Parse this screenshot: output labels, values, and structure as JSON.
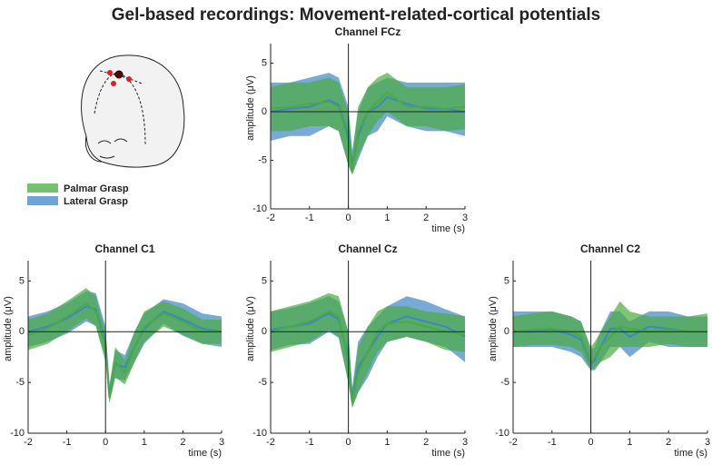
{
  "title": "Gel-based recordings: Movement-related-cortical potentials",
  "chart_data": [
    {
      "type": "band",
      "title": "Channel FCz",
      "xlabel": "time (s)",
      "ylabel": "amplitude (μV)",
      "xlim": [
        -2,
        3
      ],
      "ylim": [
        -10,
        7
      ],
      "xticks": [
        -2,
        -1,
        0,
        1,
        2,
        3
      ],
      "yticks": [
        -10,
        -5,
        0,
        5
      ],
      "x": [
        -2,
        -1.5,
        -1,
        -0.5,
        -0.25,
        0,
        0.1,
        0.25,
        0.5,
        0.75,
        1,
        1.5,
        2,
        2.5,
        3
      ],
      "series": [
        {
          "name": "Palmar Grasp",
          "color": "#4aab3f",
          "values": [
            0.3,
            0.5,
            0.8,
            1,
            0.5,
            -3,
            -6,
            -2,
            0,
            1,
            2,
            0.5,
            0.5,
            0.3,
            0.5
          ],
          "upper": [
            2.5,
            3,
            3,
            3.5,
            3,
            0,
            -4.5,
            0.5,
            2.5,
            3.5,
            4,
            2.5,
            2.5,
            2.5,
            2.8
          ],
          "lower": [
            -2,
            -2,
            -1.5,
            -1.5,
            -2,
            -5.5,
            -6.5,
            -4.5,
            -2.5,
            -1,
            0,
            -1.5,
            -1.5,
            -2,
            -1.8
          ]
        },
        {
          "name": "Lateral Grasp",
          "color": "#3f86c8",
          "values": [
            0,
            0.3,
            0.5,
            1.2,
            0.7,
            -2.5,
            -5.5,
            -2.5,
            0,
            0.5,
            1.5,
            0.8,
            0.3,
            0.3,
            0
          ],
          "upper": [
            3,
            3,
            3.5,
            4,
            3.5,
            0.5,
            -4,
            0,
            2.5,
            3,
            3.5,
            3,
            3,
            3,
            3
          ],
          "lower": [
            -3,
            -2.5,
            -2.5,
            -1.5,
            -2,
            -5.5,
            -6.5,
            -5,
            -2.5,
            -2,
            -0.5,
            -1.5,
            -2,
            -2,
            -2.5
          ]
        }
      ]
    },
    {
      "type": "band",
      "title": "Channel C1",
      "xlabel": "time (s)",
      "ylabel": "amplitude (μV)",
      "xlim": [
        -2,
        3
      ],
      "ylim": [
        -10,
        7
      ],
      "xticks": [
        -2,
        -1,
        0,
        1,
        2,
        3
      ],
      "yticks": [
        -10,
        -5,
        0,
        5
      ],
      "x": [
        -2,
        -1.5,
        -1,
        -0.5,
        -0.25,
        0,
        0.1,
        0.25,
        0.5,
        0.75,
        1,
        1.5,
        2,
        2.5,
        3
      ],
      "series": [
        {
          "name": "Palmar Grasp",
          "color": "#4aab3f",
          "values": [
            -0.3,
            0.3,
            1.5,
            2.8,
            2,
            -1.5,
            -6.5,
            -3,
            -4,
            -1.5,
            0.5,
            1.8,
            1,
            0,
            0
          ],
          "upper": [
            1.2,
            1.8,
            3,
            4.3,
            3.5,
            0,
            -5.5,
            -1.5,
            -2.8,
            0,
            2,
            3,
            2.3,
            1.2,
            1.2
          ],
          "lower": [
            -1.8,
            -1.2,
            0,
            1.3,
            0.5,
            -3,
            -7,
            -4.5,
            -5.2,
            -3,
            -1,
            0.5,
            -0.3,
            -1.2,
            -1.2
          ]
        },
        {
          "name": "Lateral Grasp",
          "color": "#3f86c8",
          "values": [
            0,
            0.5,
            1.3,
            2.5,
            2.2,
            -1,
            -6.2,
            -3.2,
            -3.5,
            -1.5,
            0.3,
            2,
            1.2,
            0.3,
            0
          ],
          "upper": [
            1.5,
            2,
            2.8,
            4,
            3.8,
            0.5,
            -5.2,
            -1.8,
            -2.3,
            0,
            1.8,
            3.2,
            2.8,
            1.8,
            1.5
          ],
          "lower": [
            -1.5,
            -1,
            -0.2,
            1,
            0.6,
            -2.5,
            -7,
            -4.6,
            -4.8,
            -3,
            -1.2,
            0.8,
            -0.4,
            -1.2,
            -1.5
          ]
        }
      ]
    },
    {
      "type": "band",
      "title": "Channel Cz",
      "xlabel": "time (s)",
      "ylabel": "amplitude (μV)",
      "xlim": [
        -2,
        3
      ],
      "ylim": [
        -10,
        7
      ],
      "xticks": [
        -2,
        -1,
        0,
        1,
        2,
        3
      ],
      "yticks": [
        -10,
        -5,
        0,
        5
      ],
      "x": [
        -2,
        -1.5,
        -1,
        -0.5,
        -0.25,
        0,
        0.1,
        0.25,
        0.5,
        0.75,
        1,
        1.5,
        2,
        2.5,
        3
      ],
      "series": [
        {
          "name": "Palmar Grasp",
          "color": "#4aab3f",
          "values": [
            0,
            0.5,
            1,
            2,
            1.5,
            -3,
            -7,
            -4,
            -2,
            0,
            0.8,
            1,
            0.5,
            0,
            -0.3
          ],
          "upper": [
            2,
            2.5,
            3,
            3.8,
            3.5,
            0,
            -6,
            -1.5,
            0.5,
            2,
            2.5,
            2.5,
            2,
            1.8,
            1.5
          ],
          "lower": [
            -2,
            -1.5,
            -1,
            0.2,
            -0.5,
            -5,
            -7.5,
            -6,
            -4,
            -2,
            -1,
            -0.5,
            -1,
            -1.8,
            -2
          ]
        },
        {
          "name": "Lateral Grasp",
          "color": "#3f86c8",
          "values": [
            0.2,
            0.5,
            0.8,
            1.8,
            1.2,
            -2.5,
            -6.5,
            -3.5,
            -2,
            -0.5,
            0.8,
            1.5,
            1,
            0.5,
            -0.5
          ],
          "upper": [
            2,
            2.3,
            2.8,
            3.5,
            3,
            0,
            -5.5,
            -1,
            0.5,
            1.5,
            2.5,
            3.5,
            3,
            2.2,
            1.5
          ],
          "lower": [
            -1.8,
            -1.3,
            -1.2,
            0,
            -0.6,
            -5,
            -7.5,
            -6,
            -4.5,
            -2.5,
            -1,
            -0.5,
            -1,
            -1.5,
            -3
          ]
        }
      ]
    },
    {
      "type": "band",
      "title": "Channel C2",
      "xlabel": "time (s)",
      "ylabel": "amplitude (μV)",
      "xlim": [
        -2,
        3
      ],
      "ylim": [
        -10,
        7
      ],
      "xticks": [
        -2,
        -1,
        0,
        1,
        2,
        3
      ],
      "yticks": [
        -10,
        -5,
        0,
        5
      ],
      "x": [
        -2,
        -1.5,
        -1,
        -0.5,
        -0.25,
        0,
        0.1,
        0.25,
        0.5,
        0.75,
        1,
        1.5,
        2,
        2.5,
        3
      ],
      "series": [
        {
          "name": "Palmar Grasp",
          "color": "#4aab3f",
          "values": [
            0,
            0.2,
            0.3,
            0,
            -0.5,
            -3,
            -2.5,
            -1.5,
            -0.5,
            0.5,
            0.3,
            0,
            0.2,
            0,
            0
          ],
          "upper": [
            1.5,
            1.8,
            2,
            1.5,
            1,
            -1.5,
            -1,
            0,
            1.5,
            3,
            2,
            1.5,
            1.5,
            1.5,
            1.8
          ],
          "lower": [
            -1.5,
            -1.3,
            -1.3,
            -1.5,
            -2,
            -3.8,
            -3.5,
            -3,
            -2.5,
            -1.5,
            -1.5,
            -1.5,
            -1.2,
            -1.5,
            -1.5
          ]
        },
        {
          "name": "Lateral Grasp",
          "color": "#3f86c8",
          "values": [
            0,
            0,
            0.2,
            -0.3,
            -0.8,
            -3.2,
            -2.8,
            -1.5,
            0.3,
            0.3,
            -0.5,
            0.5,
            0.3,
            0,
            0
          ],
          "upper": [
            2,
            2,
            2,
            1.5,
            1,
            -1.8,
            -1.5,
            0,
            2,
            2,
            1,
            2,
            2,
            1.5,
            1.5
          ],
          "lower": [
            -1.5,
            -1.5,
            -1.5,
            -2,
            -2.5,
            -3.8,
            -3.8,
            -3,
            -1.5,
            -1.5,
            -2.5,
            -1,
            -1.5,
            -1.5,
            -1.5
          ]
        }
      ]
    }
  ]
}
